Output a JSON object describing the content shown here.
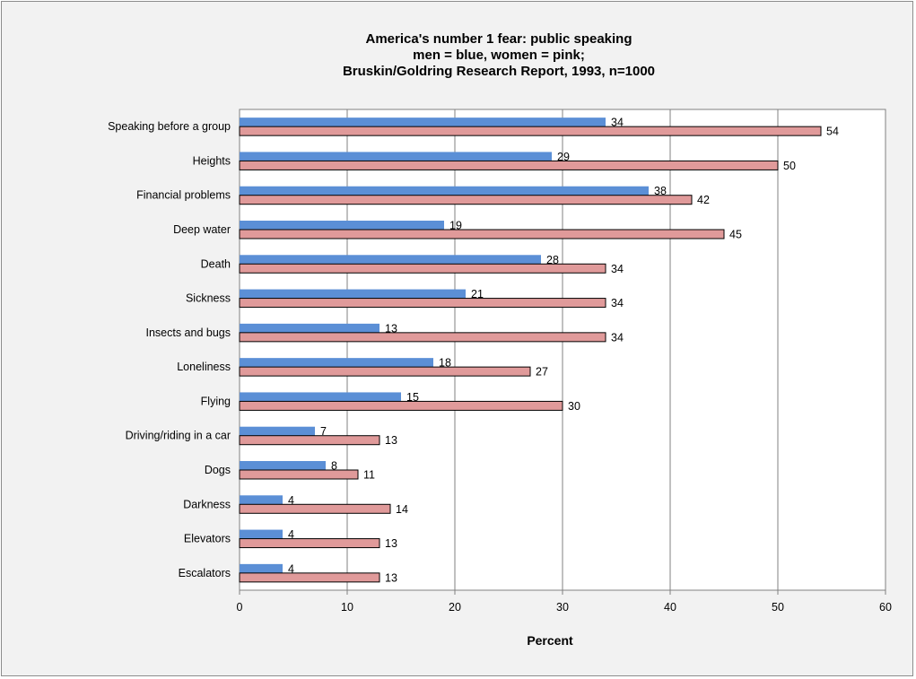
{
  "chart_data": {
    "type": "bar",
    "orientation": "horizontal",
    "title": [
      "America's number 1 fear: public speaking",
      "men = blue, women = pink;",
      "Bruskin/Goldring Research Report, 1993, n=1000"
    ],
    "xlabel": "Percent",
    "ylabel": "",
    "xlim": [
      0,
      60
    ],
    "x_ticks": [
      0,
      10,
      20,
      30,
      40,
      50,
      60
    ],
    "grid": true,
    "categories": [
      "Speaking before a group",
      "Heights",
      "Financial problems",
      "Deep water",
      "Death",
      "Sickness",
      "Insects and bugs",
      "Loneliness",
      "Flying",
      "Driving/riding in a car",
      "Dogs",
      "Darkness",
      "Elevators",
      "Escalators"
    ],
    "series": [
      {
        "name": "men",
        "color": "#5b8fd6",
        "values": [
          34,
          29,
          38,
          19,
          28,
          21,
          13,
          18,
          15,
          7,
          8,
          4,
          4,
          4
        ]
      },
      {
        "name": "women",
        "color": "#e09a9a",
        "values": [
          54,
          50,
          42,
          45,
          34,
          34,
          34,
          27,
          30,
          13,
          11,
          14,
          13,
          13
        ]
      }
    ]
  }
}
